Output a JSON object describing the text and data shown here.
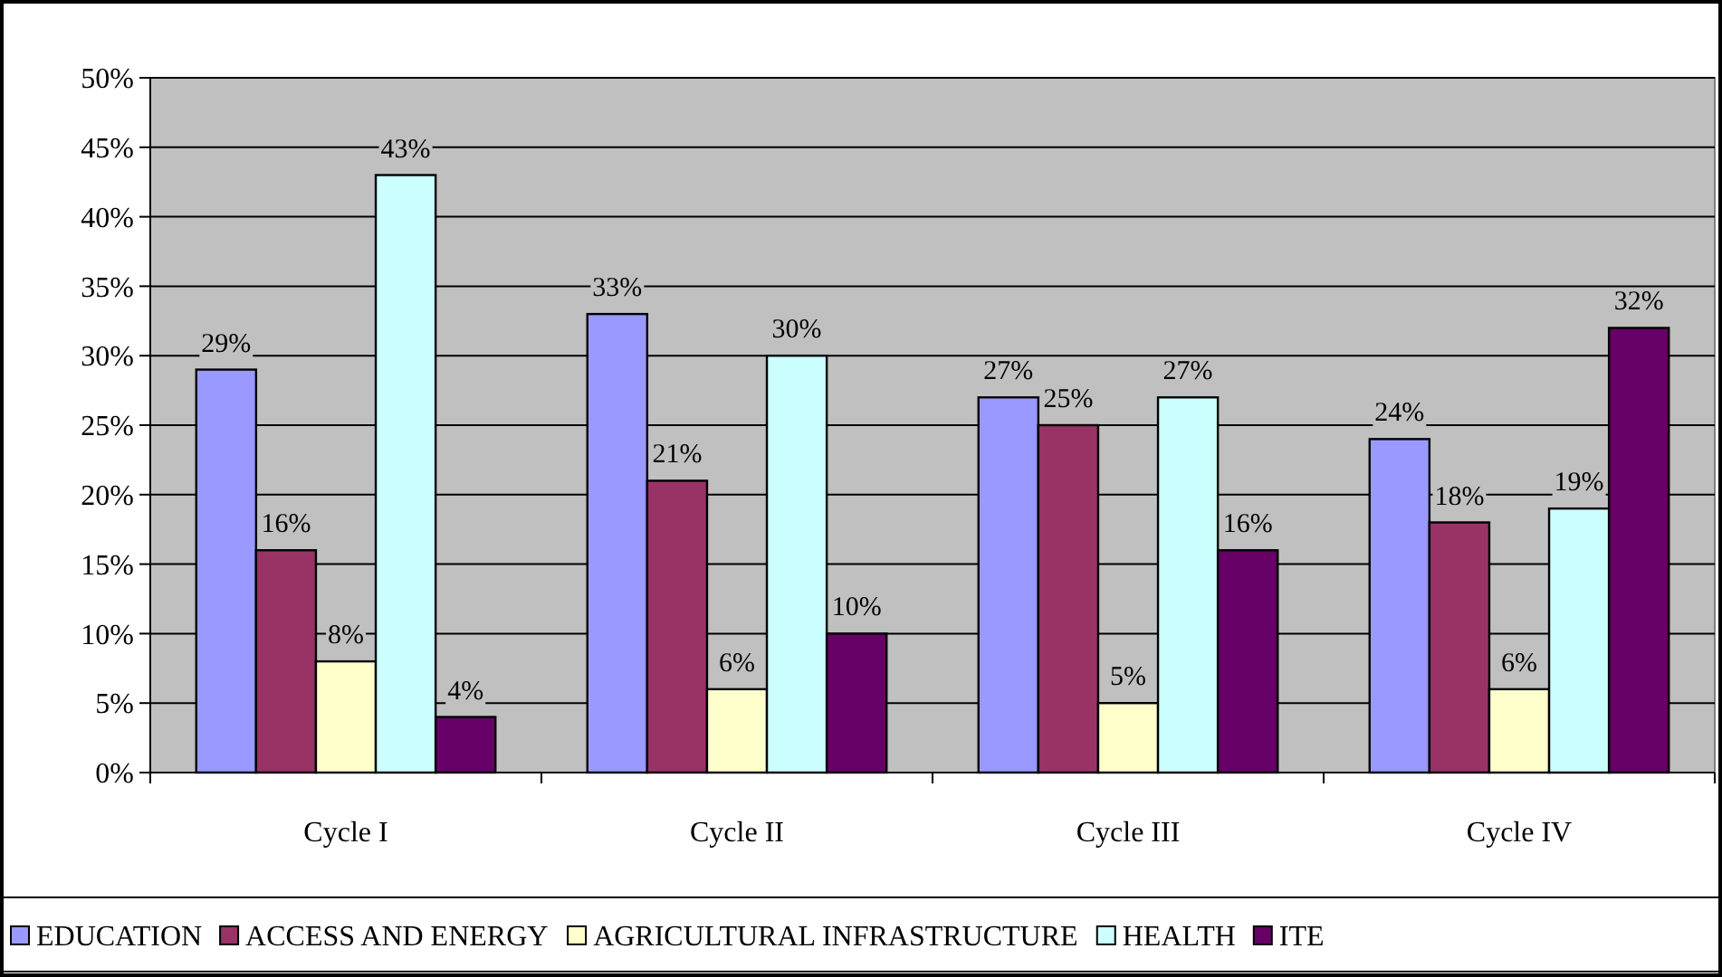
{
  "chart_data": {
    "type": "bar",
    "categories": [
      "Cycle I",
      "Cycle II",
      "Cycle III",
      "Cycle IV"
    ],
    "series": [
      {
        "name": "EDUCATION",
        "color": "#9999ff",
        "values": [
          29,
          33,
          27,
          24
        ],
        "value_labels": [
          "29%",
          "33%",
          "27%",
          "24%"
        ]
      },
      {
        "name": "ACCESS AND ENERGY",
        "color": "#993366",
        "values": [
          16,
          21,
          25,
          18
        ],
        "value_labels": [
          "16%",
          "21%",
          "25%",
          "18%"
        ]
      },
      {
        "name": "AGRICULTURAL INFRASTRUCTURE",
        "color": "#ffffcc",
        "values": [
          8,
          6,
          5,
          6
        ],
        "value_labels": [
          "8%",
          "6%",
          "5%",
          "6%"
        ]
      },
      {
        "name": "HEALTH",
        "color": "#ccffff",
        "values": [
          43,
          30,
          27,
          19
        ],
        "value_labels": [
          "43%",
          "30%",
          "27%",
          "19%"
        ]
      },
      {
        "name": "ITE",
        "color": "#660066",
        "values": [
          4,
          10,
          16,
          32
        ],
        "value_labels": [
          "4%",
          "10%",
          "16%",
          "32%"
        ]
      }
    ],
    "ylim": [
      0,
      50
    ],
    "yticks": [
      {
        "value": 0,
        "label": "0%"
      },
      {
        "value": 5,
        "label": "5%"
      },
      {
        "value": 10,
        "label": "10%"
      },
      {
        "value": 15,
        "label": "15%"
      },
      {
        "value": 20,
        "label": "20%"
      },
      {
        "value": 25,
        "label": "25%"
      },
      {
        "value": 30,
        "label": "30%"
      },
      {
        "value": 35,
        "label": "35%"
      },
      {
        "value": 40,
        "label": "40%"
      },
      {
        "value": 45,
        "label": "45%"
      },
      {
        "value": 50,
        "label": "50%"
      }
    ],
    "grid": "y",
    "legend": "bottom"
  }
}
